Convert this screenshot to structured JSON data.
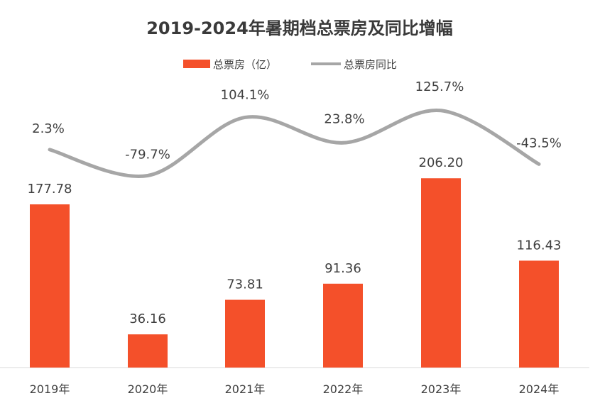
{
  "chart_data": {
    "type": "bar",
    "title": "2019-2024年暑期档总票房及同比增幅",
    "categories": [
      "2019年",
      "2020年",
      "2021年",
      "2022年",
      "2023年",
      "2024年"
    ],
    "series": [
      {
        "name": "总票房（亿）",
        "type": "bar",
        "color": "#f4502a",
        "values": [
          177.78,
          36.16,
          73.81,
          91.36,
          206.2,
          116.43
        ],
        "labels": [
          "177.78",
          "36.16",
          "73.81",
          "91.36",
          "206.20",
          "116.43"
        ]
      },
      {
        "name": "总票房同比",
        "type": "line",
        "color": "#a6a6a6",
        "values": [
          2.3,
          -79.7,
          104.1,
          23.8,
          125.7,
          -43.5
        ],
        "labels": [
          "2.3%",
          "-79.7%",
          "104.1%",
          "23.8%",
          "125.7%",
          "-43.5%"
        ]
      }
    ],
    "legend": "top-center",
    "grid": false
  }
}
